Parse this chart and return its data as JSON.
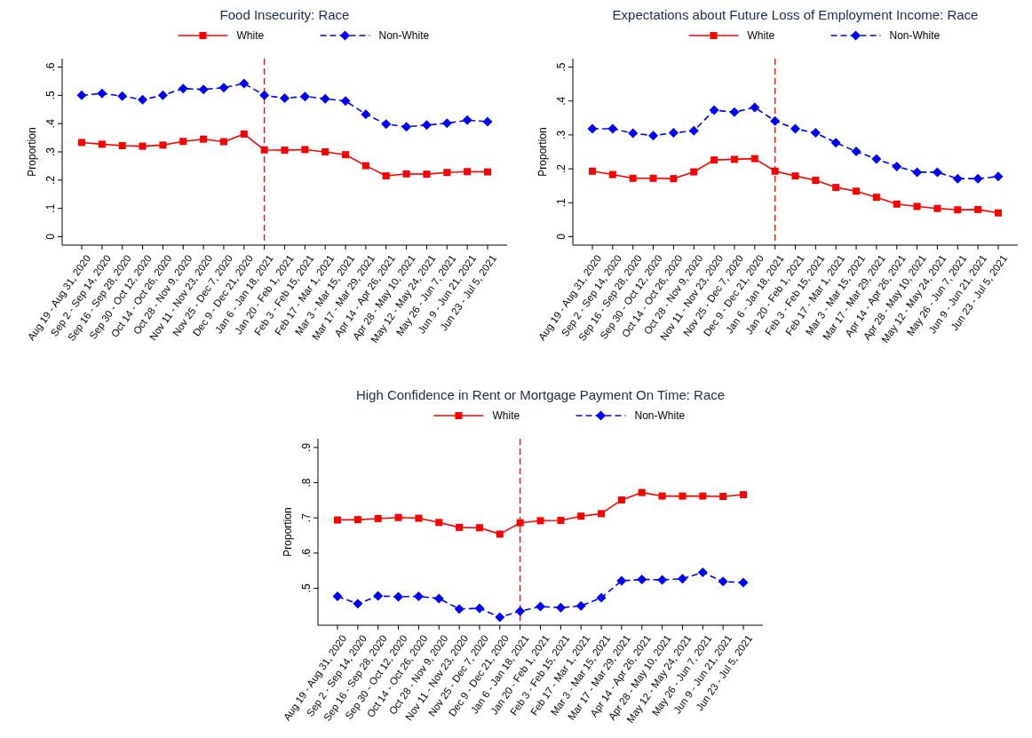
{
  "chart_data": [
    {
      "type": "line",
      "title": "Food Insecurity: Race",
      "ylabel": "Proportion",
      "legend": "top",
      "grid": false,
      "categories": [
        "Aug 19 - Aug 31, 2020",
        "Sep 2 - Sep 14, 2020",
        "Sep 16 - Sep 28, 2020",
        "Sep 30 - Oct 12, 2020",
        "Oct 14 - Oct 26, 2020",
        "Oct 28 - Nov 9, 2020",
        "Nov 11 - Nov 23, 2020",
        "Nov 25 - Dec 7, 2020",
        "Dec 9 - Dec 21, 2020",
        "Jan 6 - Jan 18, 2021",
        "Jan 20 - Feb 1, 2021",
        "Feb 3 - Feb 15, 2021",
        "Feb 17 - Mar 1, 2021",
        "Mar 3 - Mar 15, 2021",
        "Mar 17 - Mar 29, 2021",
        "Apr 14 - Apr 26, 2021",
        "Apr 28 - May 10, 2021",
        "May 12 - May 24, 2021",
        "May 26 - Jun 7, 2021",
        "Jun 9 - Jun 21, 2021",
        "Jun 23 - Jul 5, 2021"
      ],
      "ylim": [
        -0.03,
        0.63
      ],
      "yticks": [
        0,
        {
          "value": 0.1,
          "label": ".1"
        },
        {
          "value": 0.2,
          "label": ".2"
        },
        {
          "value": 0.3,
          "label": ".3"
        },
        {
          "value": 0.4,
          "label": ".4"
        },
        {
          "value": 0.5,
          "label": ".5"
        },
        {
          "value": 0.6,
          "label": ".6"
        }
      ],
      "ref_lines": [
        {
          "axis": "x",
          "value": "Jan 6 - Jan 18, 2021",
          "color": "#ff0000",
          "line_style": "dashed"
        }
      ],
      "series": [
        {
          "name": "White",
          "color": "#ff0000",
          "marker": "square",
          "line_style": "solid",
          "values": [
            0.333,
            0.327,
            0.322,
            0.32,
            0.324,
            0.337,
            0.345,
            0.336,
            0.363,
            0.307,
            0.306,
            0.308,
            0.3,
            0.29,
            0.251,
            0.215,
            0.222,
            0.221,
            0.227,
            0.23,
            0.229
          ]
        },
        {
          "name": "Non-White",
          "color": "#0000ff",
          "marker": "diamond",
          "line_style": "dashed",
          "values": [
            0.5,
            0.507,
            0.497,
            0.485,
            0.5,
            0.524,
            0.521,
            0.527,
            0.542,
            0.5,
            0.49,
            0.496,
            0.488,
            0.48,
            0.433,
            0.398,
            0.389,
            0.395,
            0.401,
            0.412,
            0.407
          ]
        }
      ]
    },
    {
      "type": "line",
      "title": "Expectations about Future Loss of Employment Income: Race",
      "ylabel": "Proportion",
      "legend": "top",
      "grid": false,
      "categories": [
        "Aug 19 - Aug 31, 2020",
        "Sep 2 - Sep 14, 2020",
        "Sep 16 - Sep 28, 2020",
        "Sep 30 - Oct 12, 2020",
        "Oct 14 - Oct 26, 2020",
        "Oct 28 - Nov 9, 2020",
        "Nov 11 - Nov 23, 2020",
        "Nov 25 - Dec 7, 2020",
        "Dec 9 - Dec 21, 2020",
        "Jan 6 - Jan 18, 2021",
        "Jan 20 - Feb 1, 2021",
        "Feb 3 - Feb 15, 2021",
        "Feb 17 - Mar 1, 2021",
        "Mar 3 - Mar 15, 2021",
        "Mar 17 - Mar 29, 2021",
        "Apr 14 - Apr 26, 2021",
        "Apr 28 - May 10, 2021",
        "May 12 - May 24, 2021",
        "May 26 - Jun 7, 2021",
        "Jun 9 - Jun 21, 2021",
        "Jun 23 - Jul 5, 2021"
      ],
      "ylim": [
        -0.025,
        0.525
      ],
      "yticks": [
        0,
        {
          "value": 0.1,
          "label": ".1"
        },
        {
          "value": 0.2,
          "label": ".2"
        },
        {
          "value": 0.3,
          "label": ".3"
        },
        {
          "value": 0.4,
          "label": ".4"
        },
        {
          "value": 0.5,
          "label": ".5"
        }
      ],
      "ref_lines": [
        {
          "axis": "x",
          "value": "Jan 6 - Jan 18, 2021",
          "color": "#ff0000",
          "line_style": "dashed"
        }
      ],
      "series": [
        {
          "name": "White",
          "color": "#ff0000",
          "marker": "square",
          "line_style": "solid",
          "values": [
            0.193,
            0.183,
            0.172,
            0.172,
            0.171,
            0.191,
            0.226,
            0.228,
            0.23,
            0.193,
            0.179,
            0.166,
            0.145,
            0.134,
            0.116,
            0.096,
            0.089,
            0.083,
            0.079,
            0.08,
            0.07
          ]
        },
        {
          "name": "Non-White",
          "color": "#0000ff",
          "marker": "diamond",
          "line_style": "dashed",
          "values": [
            0.318,
            0.318,
            0.305,
            0.298,
            0.306,
            0.312,
            0.373,
            0.367,
            0.381,
            0.341,
            0.318,
            0.306,
            0.277,
            0.251,
            0.229,
            0.207,
            0.19,
            0.19,
            0.171,
            0.171,
            0.177
          ]
        }
      ]
    },
    {
      "type": "line",
      "title": "High Confidence in Rent or Mortgage Payment On Time: Race",
      "ylabel": "Proportion",
      "legend": "top",
      "grid": false,
      "categories": [
        "Aug 19 - Aug 31, 2020",
        "Sep 2 - Sep 14, 2020",
        "Sep 16 - Sep 28, 2020",
        "Sep 30 - Oct 12, 2020",
        "Oct 14 - Oct 26, 2020",
        "Oct 28 - Nov 9, 2020",
        "Nov 11 - Nov 23, 2020",
        "Nov 25 - Dec 7, 2020",
        "Dec 9 - Dec 21, 2020",
        "Jan 6 - Jan 18, 2021",
        "Jan 20 - Feb 1, 2021",
        "Feb 3 - Feb 15, 2021",
        "Feb 17 - Mar 1, 2021",
        "Mar 3 - Mar 15, 2021",
        "Mar 17 - Mar 29, 2021",
        "Apr 14 - Apr 26, 2021",
        "Apr 28 - May 10, 2021",
        "May 12 - May 24, 2021",
        "May 26 - Jun 7, 2021",
        "Jun 9 - Jun 21, 2021",
        "Jun 23 - Jul 5, 2021"
      ],
      "ylim": [
        0.395,
        0.925
      ],
      "yticks": [
        {
          "value": 0.5,
          "label": ".5"
        },
        {
          "value": 0.6,
          "label": ".6"
        },
        {
          "value": 0.7,
          "label": ".7"
        },
        {
          "value": 0.8,
          "label": ".8"
        },
        {
          "value": 0.9,
          "label": ".9"
        }
      ],
      "ref_lines": [
        {
          "axis": "x",
          "value": "Jan 6 - Jan 18, 2021",
          "color": "#ff0000",
          "line_style": "dashed"
        }
      ],
      "series": [
        {
          "name": "White",
          "color": "#ff0000",
          "marker": "square",
          "line_style": "solid",
          "values": [
            0.694,
            0.695,
            0.698,
            0.701,
            0.699,
            0.687,
            0.673,
            0.672,
            0.654,
            0.686,
            0.692,
            0.693,
            0.705,
            0.712,
            0.751,
            0.772,
            0.762,
            0.762,
            0.762,
            0.761,
            0.766
          ]
        },
        {
          "name": "Non-White",
          "color": "#0000ff",
          "marker": "diamond",
          "line_style": "dashed",
          "values": [
            0.477,
            0.456,
            0.478,
            0.476,
            0.477,
            0.471,
            0.441,
            0.443,
            0.418,
            0.435,
            0.448,
            0.445,
            0.45,
            0.473,
            0.521,
            0.525,
            0.524,
            0.527,
            0.545,
            0.519,
            0.516
          ]
        }
      ]
    }
  ]
}
